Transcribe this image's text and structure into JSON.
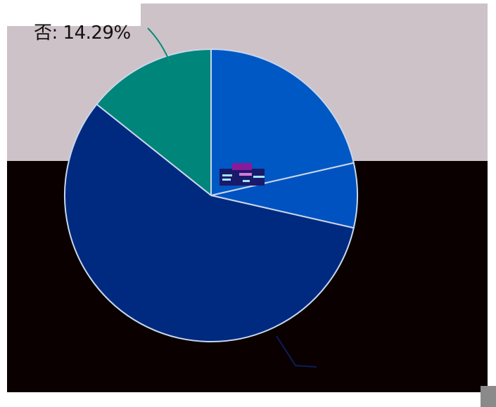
{
  "chart_data": {
    "type": "pie",
    "slices": [
      {
        "label": "否",
        "value": 14.29,
        "color": "#00857a"
      },
      {
        "label": "",
        "value": 21.43,
        "color": "#0058c4"
      },
      {
        "label": "",
        "value": 7.14,
        "color": "#0052c0"
      },
      {
        "label": "",
        "value": 57.14,
        "color": "#002a80"
      }
    ],
    "data_labels": [
      "否: 14.29%"
    ]
  },
  "colors": {
    "panel_background": "#cdc2c8",
    "dark_background": "#0b0000",
    "leader_line": "#0d8a7c"
  }
}
